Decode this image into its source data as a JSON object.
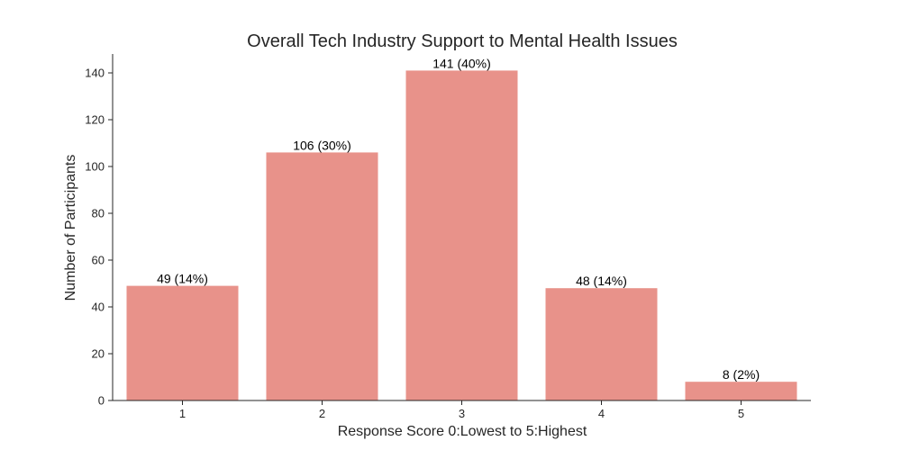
{
  "chart_data": {
    "type": "bar",
    "title": "Overall Tech Industry Support to Mental Health Issues",
    "xlabel": "Response Score 0:Lowest to 5:Highest",
    "ylabel": "Number of Participants",
    "categories": [
      "1",
      "2",
      "3",
      "4",
      "5"
    ],
    "values": [
      49,
      106,
      141,
      48,
      8
    ],
    "data_labels": [
      "49 (14%)",
      "106 (30%)",
      "141 (40%)",
      "48 (14%)",
      "8 (2%)"
    ],
    "ylim": [
      0,
      148
    ],
    "yticks": [
      0,
      20,
      40,
      60,
      80,
      100,
      120,
      140
    ],
    "bar_color": "#e8928a",
    "grid": false,
    "legend": "none"
  }
}
